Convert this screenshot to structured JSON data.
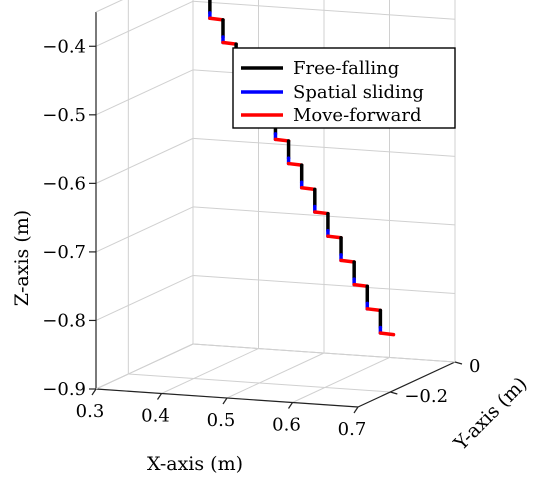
{
  "chart_data": {
    "type": "line3d",
    "title": "",
    "xlabel": "X-axis (m)",
    "ylabel": "Y-axis (m)",
    "zlabel": "Z-axis (m)",
    "xlim": [
      0.3,
      0.7
    ],
    "ylim": [
      -0.3,
      0
    ],
    "zlim": [
      -0.9,
      -0.35
    ],
    "x_ticks": [
      0.3,
      0.4,
      0.5,
      0.6,
      0.7
    ],
    "x_tick_labels": [
      "0.3",
      "0.4",
      "0.5",
      "0.6",
      "0.7"
    ],
    "y_ticks": [
      -0.2,
      0
    ],
    "y_tick_labels": [
      "−0.2",
      "0"
    ],
    "z_ticks": [
      -0.9,
      -0.8,
      -0.7,
      -0.6,
      -0.5,
      -0.4
    ],
    "z_tick_labels": [
      "−0.9",
      "−0.8",
      "−0.7",
      "−0.6",
      "−0.5",
      "−0.4"
    ],
    "grid": true,
    "legend_position": "top-right",
    "series": [
      {
        "name": "Free-falling",
        "color": "#000000"
      },
      {
        "name": "Spatial sliding",
        "color": "#0000ff"
      },
      {
        "name": "Move-forward",
        "color": "#ff0000"
      }
    ],
    "trajectory": {
      "start": [
        0.385,
        -0.12,
        -0.36
      ],
      "steps": 14,
      "fall": [
        0.0,
        0.0,
        -0.025
      ],
      "slide": [
        0.0,
        0.0,
        -0.008
      ],
      "forward": [
        0.022,
        -0.004,
        0.0
      ]
    }
  }
}
